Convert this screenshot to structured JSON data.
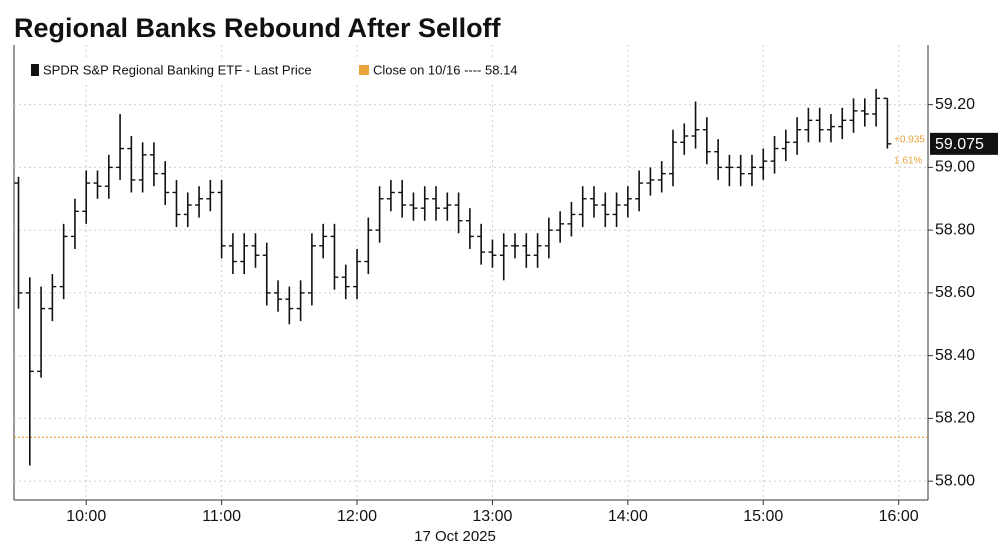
{
  "chart_data": {
    "type": "ohlc",
    "title": "Regional Banks Rebound After Selloff",
    "xlabel": "17 Oct 2025",
    "x": [
      "09:30",
      "09:35",
      "09:40",
      "09:45",
      "09:50",
      "09:55",
      "10:00",
      "10:05",
      "10:10",
      "10:15",
      "10:20",
      "10:25",
      "10:30",
      "10:35",
      "10:40",
      "10:45",
      "10:50",
      "10:55",
      "11:00",
      "11:05",
      "11:10",
      "11:15",
      "11:20",
      "11:25",
      "11:30",
      "11:35",
      "11:40",
      "11:45",
      "11:50",
      "11:55",
      "12:00",
      "12:05",
      "12:10",
      "12:15",
      "12:20",
      "12:25",
      "12:30",
      "12:35",
      "12:40",
      "12:45",
      "12:50",
      "12:55",
      "13:00",
      "13:05",
      "13:10",
      "13:15",
      "13:20",
      "13:25",
      "13:30",
      "13:35",
      "13:40",
      "13:45",
      "13:50",
      "13:55",
      "14:00",
      "14:05",
      "14:10",
      "14:15",
      "14:20",
      "14:25",
      "14:30",
      "14:35",
      "14:40",
      "14:45",
      "14:50",
      "14:55",
      "15:00",
      "15:05",
      "15:10",
      "15:15",
      "15:20",
      "15:25",
      "15:30",
      "15:35",
      "15:40",
      "15:45",
      "15:50",
      "15:55"
    ],
    "series": [
      {
        "name": "SPDR S&P Regional Banking ETF - Last Price",
        "color": "#111111",
        "open": [
          58.95,
          58.6,
          58.35,
          58.55,
          58.62,
          58.78,
          58.86,
          58.95,
          58.94,
          59.0,
          59.06,
          58.96,
          59.04,
          58.98,
          58.92,
          58.85,
          58.88,
          58.9,
          58.92,
          58.75,
          58.7,
          58.75,
          58.72,
          58.6,
          58.58,
          58.55,
          58.6,
          58.75,
          58.78,
          58.65,
          58.62,
          58.7,
          58.8,
          58.9,
          58.92,
          58.88,
          58.87,
          58.9,
          58.87,
          58.88,
          58.83,
          58.78,
          58.73,
          58.72,
          58.75,
          58.75,
          58.72,
          58.75,
          58.8,
          58.82,
          58.85,
          58.9,
          58.88,
          58.85,
          58.88,
          58.9,
          58.95,
          58.96,
          58.98,
          59.08,
          59.1,
          59.12,
          59.05,
          59.0,
          59.0,
          58.98,
          59.0,
          59.02,
          59.06,
          59.08,
          59.12,
          59.15,
          59.12,
          59.13,
          59.15,
          59.18,
          59.17,
          59.22
        ],
        "high": [
          58.97,
          58.65,
          58.62,
          58.66,
          58.82,
          58.9,
          58.99,
          58.99,
          59.04,
          59.17,
          59.1,
          59.08,
          59.08,
          59.02,
          58.96,
          58.92,
          58.94,
          58.96,
          58.96,
          58.79,
          58.79,
          58.79,
          58.76,
          58.64,
          58.62,
          58.64,
          58.79,
          58.82,
          58.82,
          58.69,
          58.74,
          58.84,
          58.94,
          58.96,
          58.96,
          58.92,
          58.94,
          58.94,
          58.92,
          58.92,
          58.87,
          58.82,
          58.77,
          58.79,
          58.79,
          58.79,
          58.79,
          58.84,
          58.86,
          58.89,
          58.94,
          58.94,
          58.92,
          58.92,
          58.94,
          58.99,
          59.0,
          59.02,
          59.12,
          59.14,
          59.21,
          59.16,
          59.09,
          59.04,
          59.04,
          59.04,
          59.06,
          59.1,
          59.12,
          59.16,
          59.19,
          59.19,
          59.17,
          59.19,
          59.22,
          59.22,
          59.25,
          59.22
        ],
        "low": [
          58.55,
          58.05,
          58.33,
          58.51,
          58.58,
          58.74,
          58.82,
          58.9,
          58.9,
          58.96,
          58.92,
          58.92,
          58.94,
          58.88,
          58.81,
          58.81,
          58.84,
          58.86,
          58.71,
          58.66,
          58.66,
          58.68,
          58.56,
          58.54,
          58.5,
          58.51,
          58.56,
          58.71,
          58.61,
          58.58,
          58.58,
          58.66,
          58.76,
          58.86,
          58.84,
          58.83,
          58.83,
          58.83,
          58.83,
          58.79,
          58.74,
          58.69,
          58.68,
          58.64,
          58.71,
          58.68,
          58.68,
          58.71,
          58.76,
          58.78,
          58.81,
          58.84,
          58.81,
          58.81,
          58.84,
          58.86,
          58.91,
          58.92,
          58.94,
          59.04,
          59.06,
          59.01,
          58.96,
          58.94,
          58.94,
          58.94,
          58.96,
          58.98,
          59.02,
          59.04,
          59.08,
          59.08,
          59.08,
          59.09,
          59.11,
          59.13,
          59.13,
          59.06
        ],
        "close": [
          58.6,
          58.35,
          58.55,
          58.62,
          58.78,
          58.86,
          58.95,
          58.94,
          59.0,
          59.06,
          58.96,
          59.04,
          58.98,
          58.92,
          58.85,
          58.88,
          58.9,
          58.92,
          58.75,
          58.7,
          58.75,
          58.72,
          58.6,
          58.58,
          58.55,
          58.6,
          58.75,
          58.78,
          58.65,
          58.62,
          58.7,
          58.8,
          58.9,
          58.92,
          58.88,
          58.87,
          58.9,
          58.87,
          58.88,
          58.83,
          58.78,
          58.73,
          58.72,
          58.75,
          58.75,
          58.72,
          58.75,
          58.8,
          58.82,
          58.85,
          58.9,
          58.88,
          58.85,
          58.88,
          58.9,
          58.95,
          58.96,
          58.98,
          59.08,
          59.1,
          59.12,
          59.05,
          59.0,
          59.0,
          58.98,
          59.0,
          59.02,
          59.06,
          59.08,
          59.12,
          59.15,
          59.12,
          59.13,
          59.15,
          59.18,
          59.17,
          59.22,
          59.075
        ]
      }
    ],
    "reference": {
      "value": 58.14,
      "color": "#e8a33d",
      "label": "Close on 10/16 ---- 58.14"
    },
    "last_price": 59.075,
    "change_label": "+0.935",
    "change_pct_label": "1.61%",
    "xlim": [
      "09:28",
      "16:13"
    ],
    "xticks": [
      "10:00",
      "11:00",
      "12:00",
      "13:00",
      "14:00",
      "15:00",
      "16:00"
    ],
    "ylim": [
      57.94,
      59.39
    ],
    "yticks": [
      {
        "value": 58,
        "label": "58.00"
      },
      {
        "value": 58.2,
        "label": "58.20"
      },
      {
        "value": 58.4,
        "label": "58.40"
      },
      {
        "value": 58.6,
        "label": "58.60"
      },
      {
        "value": 58.8,
        "label": "58.80"
      },
      {
        "value": 59,
        "label": "59.00"
      },
      {
        "value": 59.2,
        "label": "59.20"
      }
    ],
    "grid": true
  }
}
